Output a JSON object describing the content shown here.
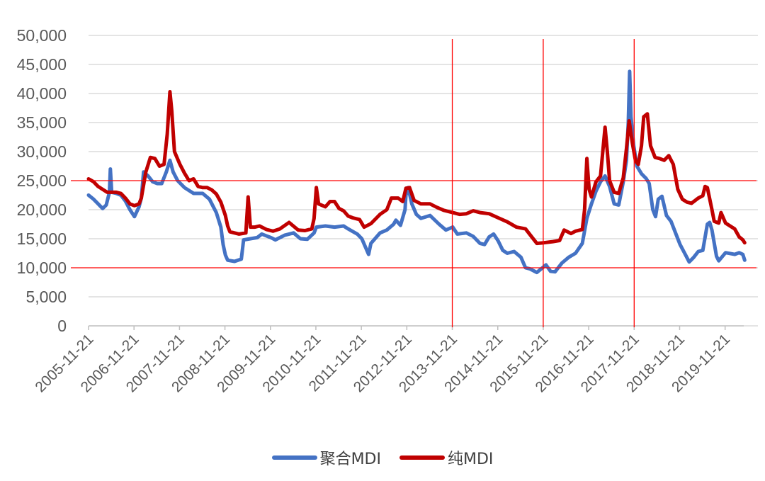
{
  "chart_data": {
    "type": "line",
    "yticks": [
      "50,000",
      "45,000",
      "40,000",
      "35,000",
      "30,000",
      "25,000",
      "20,000",
      "15,000",
      "10,000",
      "5,000",
      "0"
    ],
    "ylim": [
      0,
      50000
    ],
    "xticks": [
      "2005-11-21",
      "2006-11-21",
      "2007-11-21",
      "2008-11-21",
      "2009-11-21",
      "2010-11-21",
      "2011-11-21",
      "2012-11-21",
      "2013-11-21",
      "2014-11-21",
      "2015-11-21",
      "2016-11-21",
      "2017-11-21",
      "2018-11-21",
      "2019-11-21"
    ],
    "xlim": [
      2005.89,
      2020.3
    ],
    "grid": true,
    "legend_position": "bottom",
    "reference_lines": {
      "horizontal": [
        25000,
        10000
      ],
      "vertical": [
        "2013-11-21",
        "2015-11-21",
        "2017-11-21"
      ],
      "color": "#ff0000"
    },
    "series": [
      {
        "name": "聚合MDI",
        "color": "#4472c4",
        "points": [
          [
            2005.89,
            22500
          ],
          [
            2006.0,
            21800
          ],
          [
            2006.1,
            21000
          ],
          [
            2006.2,
            20200
          ],
          [
            2006.28,
            20800
          ],
          [
            2006.35,
            23000
          ],
          [
            2006.37,
            27000
          ],
          [
            2006.4,
            23000
          ],
          [
            2006.5,
            22800
          ],
          [
            2006.6,
            22500
          ],
          [
            2006.7,
            21500
          ],
          [
            2006.8,
            20000
          ],
          [
            2006.9,
            18800
          ],
          [
            2007.0,
            20500
          ],
          [
            2007.05,
            22000
          ],
          [
            2007.1,
            26500
          ],
          [
            2007.2,
            25800
          ],
          [
            2007.3,
            24800
          ],
          [
            2007.4,
            24500
          ],
          [
            2007.5,
            24500
          ],
          [
            2007.6,
            26500
          ],
          [
            2007.68,
            28500
          ],
          [
            2007.75,
            26500
          ],
          [
            2007.85,
            25000
          ],
          [
            2008.0,
            23800
          ],
          [
            2008.2,
            22800
          ],
          [
            2008.4,
            22800
          ],
          [
            2008.55,
            21800
          ],
          [
            2008.7,
            19500
          ],
          [
            2008.8,
            17000
          ],
          [
            2008.85,
            14000
          ],
          [
            2008.9,
            12200
          ],
          [
            2008.95,
            11300
          ],
          [
            2009.1,
            11100
          ],
          [
            2009.25,
            11500
          ],
          [
            2009.3,
            14800
          ],
          [
            2009.45,
            15000
          ],
          [
            2009.6,
            15200
          ],
          [
            2009.7,
            15800
          ],
          [
            2009.8,
            15500
          ],
          [
            2009.9,
            15200
          ],
          [
            2010.0,
            14800
          ],
          [
            2010.2,
            15600
          ],
          [
            2010.4,
            16000
          ],
          [
            2010.55,
            15000
          ],
          [
            2010.7,
            14900
          ],
          [
            2010.85,
            16000
          ],
          [
            2010.9,
            17000
          ],
          [
            2011.1,
            17200
          ],
          [
            2011.3,
            17000
          ],
          [
            2011.5,
            17200
          ],
          [
            2011.6,
            16700
          ],
          [
            2011.8,
            15800
          ],
          [
            2011.9,
            15000
          ],
          [
            2012.0,
            13200
          ],
          [
            2012.05,
            12300
          ],
          [
            2012.1,
            14200
          ],
          [
            2012.3,
            16000
          ],
          [
            2012.45,
            16500
          ],
          [
            2012.6,
            17500
          ],
          [
            2012.65,
            18200
          ],
          [
            2012.75,
            17300
          ],
          [
            2012.85,
            20000
          ],
          [
            2012.87,
            22500
          ],
          [
            2012.92,
            23800
          ],
          [
            2013.0,
            21000
          ],
          [
            2013.1,
            19200
          ],
          [
            2013.2,
            18500
          ],
          [
            2013.4,
            19000
          ],
          [
            2013.6,
            17500
          ],
          [
            2013.75,
            16500
          ],
          [
            2013.9,
            17000
          ],
          [
            2014.0,
            15800
          ],
          [
            2014.2,
            16000
          ],
          [
            2014.35,
            15400
          ],
          [
            2014.5,
            14200
          ],
          [
            2014.6,
            14000
          ],
          [
            2014.7,
            15300
          ],
          [
            2014.8,
            15800
          ],
          [
            2014.9,
            14600
          ],
          [
            2015.0,
            13000
          ],
          [
            2015.1,
            12500
          ],
          [
            2015.25,
            12800
          ],
          [
            2015.4,
            11800
          ],
          [
            2015.5,
            10000
          ],
          [
            2015.6,
            9800
          ],
          [
            2015.75,
            9200
          ],
          [
            2015.95,
            10500
          ],
          [
            2016.05,
            9400
          ],
          [
            2016.15,
            9300
          ],
          [
            2016.3,
            10800
          ],
          [
            2016.45,
            11800
          ],
          [
            2016.6,
            12500
          ],
          [
            2016.75,
            14200
          ],
          [
            2016.85,
            18500
          ],
          [
            2016.95,
            21000
          ],
          [
            2017.05,
            23200
          ],
          [
            2017.15,
            24800
          ],
          [
            2017.25,
            25800
          ],
          [
            2017.35,
            24000
          ],
          [
            2017.45,
            21000
          ],
          [
            2017.55,
            20800
          ],
          [
            2017.65,
            24800
          ],
          [
            2017.72,
            28500
          ],
          [
            2017.76,
            35000
          ],
          [
            2017.79,
            43800
          ],
          [
            2017.82,
            36000
          ],
          [
            2017.88,
            31000
          ],
          [
            2017.95,
            27500
          ],
          [
            2018.05,
            26200
          ],
          [
            2018.15,
            25400
          ],
          [
            2018.22,
            24500
          ],
          [
            2018.3,
            20000
          ],
          [
            2018.36,
            18800
          ],
          [
            2018.42,
            21800
          ],
          [
            2018.5,
            22300
          ],
          [
            2018.6,
            19000
          ],
          [
            2018.7,
            18000
          ],
          [
            2018.8,
            16000
          ],
          [
            2018.9,
            14000
          ],
          [
            2019.0,
            12500
          ],
          [
            2019.1,
            11000
          ],
          [
            2019.2,
            11800
          ],
          [
            2019.3,
            12800
          ],
          [
            2019.4,
            13000
          ],
          [
            2019.5,
            17500
          ],
          [
            2019.55,
            17800
          ],
          [
            2019.6,
            16500
          ],
          [
            2019.7,
            12000
          ],
          [
            2019.75,
            11200
          ],
          [
            2019.9,
            12600
          ],
          [
            2020.1,
            12300
          ],
          [
            2020.2,
            12600
          ],
          [
            2020.28,
            12300
          ],
          [
            2020.32,
            11300
          ]
        ]
      },
      {
        "name": "纯MDI",
        "color": "#c00000",
        "points": [
          [
            2005.89,
            25300
          ],
          [
            2006.0,
            24800
          ],
          [
            2006.1,
            24000
          ],
          [
            2006.2,
            23500
          ],
          [
            2006.3,
            23000
          ],
          [
            2006.4,
            23000
          ],
          [
            2006.5,
            23000
          ],
          [
            2006.6,
            22800
          ],
          [
            2006.7,
            22000
          ],
          [
            2006.8,
            21000
          ],
          [
            2006.9,
            20700
          ],
          [
            2007.0,
            21000
          ],
          [
            2007.05,
            22000
          ],
          [
            2007.15,
            26500
          ],
          [
            2007.25,
            29000
          ],
          [
            2007.35,
            28800
          ],
          [
            2007.45,
            27500
          ],
          [
            2007.55,
            27800
          ],
          [
            2007.62,
            33000
          ],
          [
            2007.68,
            40300
          ],
          [
            2007.72,
            37000
          ],
          [
            2007.78,
            30000
          ],
          [
            2007.9,
            27800
          ],
          [
            2008.0,
            26300
          ],
          [
            2008.1,
            25000
          ],
          [
            2008.2,
            25300
          ],
          [
            2008.3,
            24000
          ],
          [
            2008.4,
            23800
          ],
          [
            2008.5,
            23800
          ],
          [
            2008.6,
            23400
          ],
          [
            2008.7,
            22700
          ],
          [
            2008.8,
            21300
          ],
          [
            2008.9,
            19000
          ],
          [
            2008.95,
            17200
          ],
          [
            2009.0,
            16200
          ],
          [
            2009.2,
            15800
          ],
          [
            2009.35,
            16000
          ],
          [
            2009.4,
            22200
          ],
          [
            2009.45,
            17000
          ],
          [
            2009.55,
            17000
          ],
          [
            2009.65,
            17200
          ],
          [
            2009.8,
            16600
          ],
          [
            2009.95,
            16300
          ],
          [
            2010.1,
            16700
          ],
          [
            2010.3,
            17800
          ],
          [
            2010.5,
            16500
          ],
          [
            2010.65,
            16400
          ],
          [
            2010.8,
            16700
          ],
          [
            2010.85,
            18500
          ],
          [
            2010.9,
            23800
          ],
          [
            2010.95,
            21000
          ],
          [
            2011.1,
            20500
          ],
          [
            2011.2,
            21400
          ],
          [
            2011.3,
            21400
          ],
          [
            2011.4,
            20200
          ],
          [
            2011.5,
            19800
          ],
          [
            2011.6,
            18900
          ],
          [
            2011.7,
            18600
          ],
          [
            2011.85,
            18300
          ],
          [
            2011.95,
            17000
          ],
          [
            2012.1,
            17600
          ],
          [
            2012.3,
            19200
          ],
          [
            2012.45,
            20000
          ],
          [
            2012.55,
            22000
          ],
          [
            2012.7,
            22000
          ],
          [
            2012.8,
            21400
          ],
          [
            2012.87,
            23700
          ],
          [
            2012.95,
            23800
          ],
          [
            2013.05,
            21600
          ],
          [
            2013.2,
            21000
          ],
          [
            2013.4,
            21000
          ],
          [
            2013.55,
            20400
          ],
          [
            2013.7,
            19900
          ],
          [
            2013.9,
            19500
          ],
          [
            2014.05,
            19200
          ],
          [
            2014.2,
            19300
          ],
          [
            2014.35,
            19800
          ],
          [
            2014.5,
            19500
          ],
          [
            2014.7,
            19300
          ],
          [
            2014.9,
            18600
          ],
          [
            2015.1,
            17900
          ],
          [
            2015.3,
            17000
          ],
          [
            2015.5,
            16700
          ],
          [
            2015.65,
            15200
          ],
          [
            2015.75,
            14200
          ],
          [
            2015.9,
            14300
          ],
          [
            2016.1,
            14500
          ],
          [
            2016.25,
            14700
          ],
          [
            2016.35,
            16500
          ],
          [
            2016.5,
            15900
          ],
          [
            2016.6,
            16300
          ],
          [
            2016.75,
            16600
          ],
          [
            2016.8,
            20000
          ],
          [
            2016.85,
            28800
          ],
          [
            2016.9,
            23500
          ],
          [
            2016.95,
            22200
          ],
          [
            2017.05,
            24800
          ],
          [
            2017.15,
            25800
          ],
          [
            2017.2,
            30000
          ],
          [
            2017.25,
            34200
          ],
          [
            2017.3,
            30000
          ],
          [
            2017.35,
            25000
          ],
          [
            2017.45,
            23000
          ],
          [
            2017.55,
            22800
          ],
          [
            2017.65,
            25500
          ],
          [
            2017.72,
            30500
          ],
          [
            2017.78,
            35300
          ],
          [
            2017.85,
            31500
          ],
          [
            2017.92,
            28400
          ],
          [
            2017.98,
            27800
          ],
          [
            2018.05,
            31000
          ],
          [
            2018.1,
            36000
          ],
          [
            2018.18,
            36500
          ],
          [
            2018.25,
            31000
          ],
          [
            2018.35,
            29000
          ],
          [
            2018.45,
            28800
          ],
          [
            2018.55,
            28500
          ],
          [
            2018.65,
            29300
          ],
          [
            2018.75,
            27800
          ],
          [
            2018.85,
            23500
          ],
          [
            2018.95,
            21800
          ],
          [
            2019.05,
            21300
          ],
          [
            2019.15,
            21100
          ],
          [
            2019.3,
            22000
          ],
          [
            2019.4,
            22400
          ],
          [
            2019.45,
            24000
          ],
          [
            2019.5,
            23800
          ],
          [
            2019.6,
            20000
          ],
          [
            2019.65,
            18000
          ],
          [
            2019.75,
            17700
          ],
          [
            2019.8,
            19500
          ],
          [
            2019.9,
            17700
          ],
          [
            2020.0,
            17200
          ],
          [
            2020.1,
            16700
          ],
          [
            2020.2,
            15300
          ],
          [
            2020.28,
            14800
          ],
          [
            2020.32,
            14300
          ]
        ]
      }
    ]
  }
}
